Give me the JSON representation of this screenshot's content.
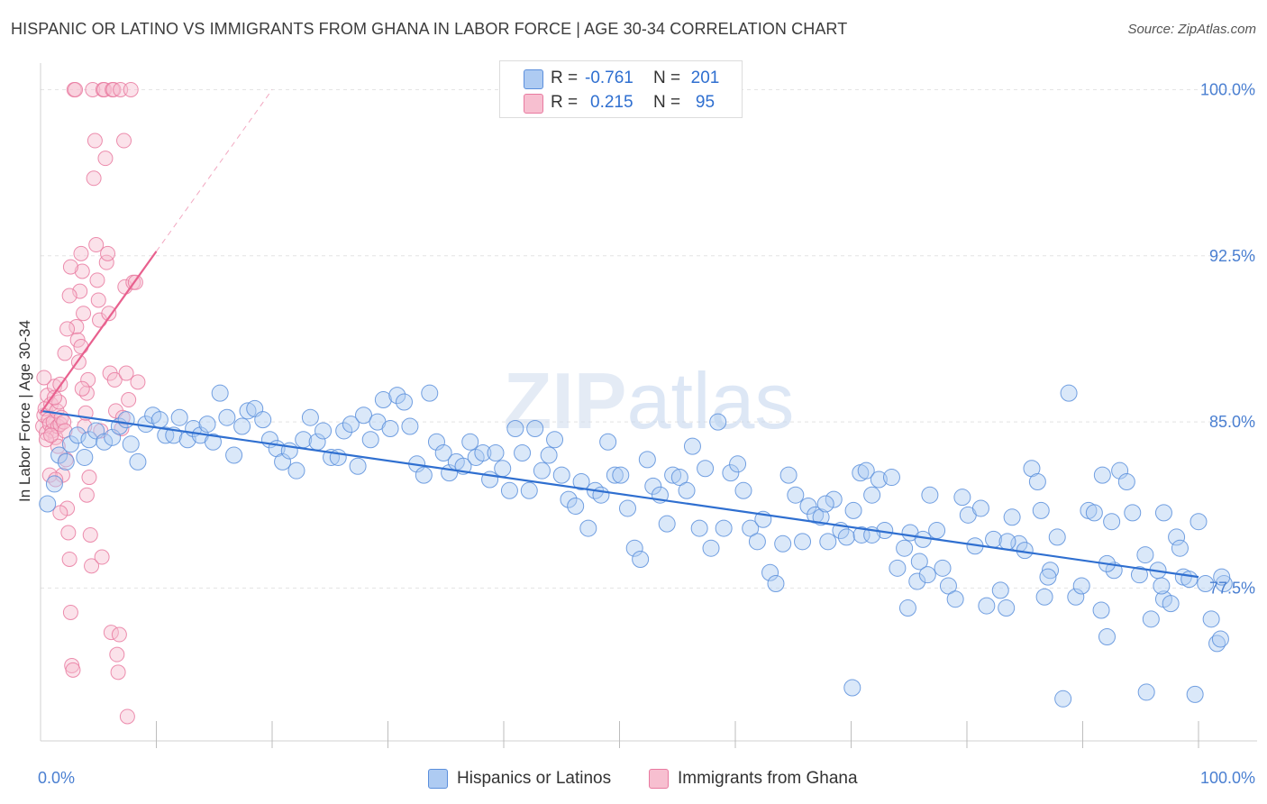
{
  "title": "HISPANIC OR LATINO VS IMMIGRANTS FROM GHANA IN LABOR FORCE | AGE 30-34 CORRELATION CHART",
  "source": "Source: ZipAtlas.com",
  "watermark": "ZIPatlas",
  "colors": {
    "blue_fill": "#aecbf2",
    "blue_stroke": "#5b8fdc",
    "blue_line": "#2f6fd0",
    "pink_fill": "#f7bfd0",
    "pink_stroke": "#e97aa0",
    "pink_line": "#e8608e",
    "tick": "#4a7fd1",
    "grid": "#e4e4e4"
  },
  "legend_top": [
    {
      "r_label": "R =",
      "r_value": "-0.761",
      "n_label": "N =",
      "n_value": "201",
      "series": "blue"
    },
    {
      "r_label": "R =",
      "r_value": "0.215",
      "n_label": "N =",
      "n_value": "95",
      "series": "pink"
    }
  ],
  "legend_bottom": [
    {
      "label": "Hispanics or Latinos",
      "series": "blue"
    },
    {
      "label": "Immigrants from Ghana",
      "series": "pink"
    }
  ],
  "chart_data": {
    "type": "scatter",
    "ylabel": "In Labor Force | Age 30-34",
    "xlabel": "",
    "x_tick_labels": [
      "0.0%",
      "100.0%"
    ],
    "y_tick_labels": [
      "100.0%",
      "92.5%",
      "85.0%",
      "77.5%"
    ],
    "y_ticks": [
      100.0,
      92.5,
      85.0,
      77.5
    ],
    "xlim": [
      0,
      100
    ],
    "ylim": [
      70.6,
      101.2
    ],
    "grid": true,
    "series": [
      {
        "name": "Hispanics or Latinos",
        "color": "#aecbf2",
        "trend": {
          "x": [
            0,
            100
          ],
          "y": [
            85.5,
            78.0
          ],
          "style": "solid"
        },
        "points": [
          [
            0.6,
            81.3
          ],
          [
            1.2,
            82.2
          ],
          [
            1.6,
            83.5
          ],
          [
            2.2,
            83.2
          ],
          [
            2.6,
            84.0
          ],
          [
            3.2,
            84.4
          ],
          [
            3.8,
            83.4
          ],
          [
            4.2,
            84.2
          ],
          [
            4.8,
            84.6
          ],
          [
            5.5,
            84.1
          ],
          [
            6.2,
            84.3
          ],
          [
            6.8,
            84.8
          ],
          [
            7.4,
            85.1
          ],
          [
            7.8,
            84.0
          ],
          [
            8.4,
            83.2
          ],
          [
            9.1,
            84.9
          ],
          [
            9.7,
            85.3
          ],
          [
            10.3,
            85.1
          ],
          [
            10.8,
            84.4
          ],
          [
            11.5,
            84.4
          ],
          [
            12.0,
            85.2
          ],
          [
            12.7,
            84.2
          ],
          [
            13.2,
            84.7
          ],
          [
            13.8,
            84.4
          ],
          [
            14.4,
            84.9
          ],
          [
            14.9,
            84.1
          ],
          [
            15.5,
            86.3
          ],
          [
            16.1,
            85.2
          ],
          [
            16.7,
            83.5
          ],
          [
            17.4,
            84.8
          ],
          [
            17.9,
            85.5
          ],
          [
            18.5,
            85.6
          ],
          [
            19.2,
            85.1
          ],
          [
            19.8,
            84.2
          ],
          [
            20.4,
            83.8
          ],
          [
            20.9,
            83.2
          ],
          [
            21.5,
            83.7
          ],
          [
            22.1,
            82.8
          ],
          [
            22.7,
            84.2
          ],
          [
            23.3,
            85.2
          ],
          [
            23.9,
            84.1
          ],
          [
            24.4,
            84.6
          ],
          [
            25.1,
            83.4
          ],
          [
            25.7,
            83.4
          ],
          [
            26.2,
            84.6
          ],
          [
            26.8,
            84.9
          ],
          [
            27.4,
            83.0
          ],
          [
            27.9,
            85.3
          ],
          [
            28.5,
            84.2
          ],
          [
            29.1,
            85.0
          ],
          [
            29.6,
            86.0
          ],
          [
            30.2,
            84.7
          ],
          [
            30.8,
            86.2
          ],
          [
            31.4,
            85.9
          ],
          [
            31.9,
            84.8
          ],
          [
            32.5,
            83.1
          ],
          [
            33.1,
            82.6
          ],
          [
            33.6,
            86.3
          ],
          [
            34.2,
            84.1
          ],
          [
            34.8,
            83.6
          ],
          [
            35.3,
            82.7
          ],
          [
            35.9,
            83.2
          ],
          [
            36.5,
            83.0
          ],
          [
            37.1,
            84.1
          ],
          [
            37.6,
            83.4
          ],
          [
            38.2,
            83.6
          ],
          [
            38.8,
            82.4
          ],
          [
            39.3,
            83.6
          ],
          [
            39.9,
            82.9
          ],
          [
            40.5,
            81.9
          ],
          [
            41.0,
            84.7
          ],
          [
            41.6,
            83.6
          ],
          [
            42.2,
            81.9
          ],
          [
            42.7,
            84.7
          ],
          [
            43.3,
            82.8
          ],
          [
            43.9,
            83.5
          ],
          [
            44.4,
            84.2
          ],
          [
            45.0,
            82.6
          ],
          [
            45.6,
            81.5
          ],
          [
            46.2,
            81.2
          ],
          [
            46.7,
            82.3
          ],
          [
            47.3,
            80.2
          ],
          [
            47.9,
            81.9
          ],
          [
            48.4,
            81.7
          ],
          [
            49.0,
            84.1
          ],
          [
            49.6,
            82.6
          ],
          [
            50.1,
            82.6
          ],
          [
            50.7,
            81.1
          ],
          [
            51.3,
            79.3
          ],
          [
            51.8,
            78.8
          ],
          [
            52.4,
            83.3
          ],
          [
            52.9,
            82.1
          ],
          [
            53.5,
            81.7
          ],
          [
            54.1,
            80.4
          ],
          [
            54.6,
            82.6
          ],
          [
            55.2,
            82.5
          ],
          [
            55.8,
            81.9
          ],
          [
            56.3,
            83.9
          ],
          [
            56.9,
            80.2
          ],
          [
            57.4,
            82.9
          ],
          [
            57.9,
            79.3
          ],
          [
            58.5,
            85.0
          ],
          [
            59.0,
            80.2
          ],
          [
            59.6,
            82.7
          ],
          [
            60.2,
            83.1
          ],
          [
            60.7,
            81.9
          ],
          [
            61.3,
            80.2
          ],
          [
            61.9,
            79.6
          ],
          [
            62.4,
            80.6
          ],
          [
            63.0,
            78.2
          ],
          [
            63.5,
            77.7
          ],
          [
            64.1,
            79.5
          ],
          [
            64.6,
            82.6
          ],
          [
            65.2,
            81.7
          ],
          [
            65.8,
            79.6
          ],
          [
            66.3,
            81.2
          ],
          [
            66.9,
            80.8
          ],
          [
            67.4,
            80.7
          ],
          [
            68.0,
            79.6
          ],
          [
            68.5,
            81.5
          ],
          [
            69.1,
            80.1
          ],
          [
            69.6,
            79.8
          ],
          [
            70.2,
            81.0
          ],
          [
            70.8,
            82.7
          ],
          [
            71.3,
            82.8
          ],
          [
            71.8,
            81.7
          ],
          [
            72.4,
            82.4
          ],
          [
            72.9,
            80.1
          ],
          [
            73.5,
            82.5
          ],
          [
            74.0,
            78.4
          ],
          [
            74.6,
            79.3
          ],
          [
            75.1,
            80.0
          ],
          [
            75.7,
            77.8
          ],
          [
            76.2,
            79.7
          ],
          [
            76.8,
            81.7
          ],
          [
            77.4,
            80.1
          ],
          [
            77.9,
            78.4
          ],
          [
            78.4,
            77.6
          ],
          [
            79.0,
            77.0
          ],
          [
            79.6,
            81.6
          ],
          [
            80.1,
            80.8
          ],
          [
            80.7,
            79.4
          ],
          [
            81.2,
            81.1
          ],
          [
            81.7,
            76.7
          ],
          [
            82.3,
            79.7
          ],
          [
            82.9,
            77.4
          ],
          [
            83.4,
            76.6
          ],
          [
            83.9,
            80.7
          ],
          [
            84.5,
            79.5
          ],
          [
            85.0,
            79.2
          ],
          [
            85.6,
            82.9
          ],
          [
            86.1,
            82.3
          ],
          [
            86.7,
            77.1
          ],
          [
            87.2,
            78.3
          ],
          [
            87.8,
            79.8
          ],
          [
            88.3,
            72.5
          ],
          [
            88.8,
            86.3
          ],
          [
            89.4,
            77.1
          ],
          [
            89.9,
            77.6
          ],
          [
            90.5,
            81.0
          ],
          [
            91.0,
            80.9
          ],
          [
            91.6,
            76.5
          ],
          [
            92.1,
            75.3
          ],
          [
            92.7,
            78.3
          ],
          [
            93.2,
            82.8
          ],
          [
            93.8,
            82.3
          ],
          [
            94.3,
            80.9
          ],
          [
            94.9,
            78.1
          ],
          [
            95.4,
            79.0
          ],
          [
            95.9,
            76.1
          ],
          [
            96.5,
            78.3
          ],
          [
            97.0,
            77.0
          ],
          [
            97.6,
            76.8
          ],
          [
            98.1,
            79.8
          ],
          [
            98.7,
            78.0
          ],
          [
            99.2,
            77.9
          ],
          [
            99.7,
            72.7
          ],
          [
            100.0,
            80.5
          ],
          [
            100.6,
            77.7
          ],
          [
            101.1,
            76.1
          ],
          [
            101.6,
            75.0
          ],
          [
            102.2,
            77.7
          ],
          [
            101.9,
            75.2
          ],
          [
            75.9,
            78.7
          ],
          [
            74.9,
            76.6
          ],
          [
            70.1,
            73.0
          ],
          [
            70.9,
            79.9
          ],
          [
            76.6,
            78.1
          ],
          [
            92.1,
            78.6
          ],
          [
            71.8,
            79.9
          ],
          [
            67.8,
            81.3
          ],
          [
            91.7,
            82.6
          ],
          [
            97.0,
            80.9
          ],
          [
            96.8,
            77.6
          ],
          [
            102.0,
            78.0
          ],
          [
            98.4,
            79.3
          ],
          [
            92.5,
            80.5
          ],
          [
            86.4,
            81.0
          ],
          [
            83.5,
            79.6
          ],
          [
            87.0,
            78.0
          ],
          [
            95.5,
            72.8
          ]
        ]
      },
      {
        "name": "Immigrants from Ghana",
        "color": "#f7bfd0",
        "trend": {
          "x": [
            0,
            10
          ],
          "y": [
            85.4,
            92.7
          ],
          "style": "solid",
          "extend_to": [
            20,
            100.0
          ]
        },
        "points": [
          [
            0.2,
            84.8
          ],
          [
            0.3,
            85.3
          ],
          [
            0.4,
            85.6
          ],
          [
            0.5,
            84.5
          ],
          [
            0.6,
            86.2
          ],
          [
            0.7,
            85.1
          ],
          [
            0.8,
            84.9
          ],
          [
            0.9,
            85.8
          ],
          [
            1.0,
            84.6
          ],
          [
            1.1,
            85.0
          ],
          [
            1.2,
            86.6
          ],
          [
            1.3,
            84.3
          ],
          [
            1.4,
            85.5
          ],
          [
            1.5,
            84.8
          ],
          [
            1.6,
            85.9
          ],
          [
            1.7,
            84.9
          ],
          [
            1.8,
            85.2
          ],
          [
            1.9,
            82.6
          ],
          [
            2.0,
            85.0
          ],
          [
            2.1,
            84.6
          ],
          [
            2.2,
            83.3
          ],
          [
            2.3,
            81.1
          ],
          [
            2.4,
            80.0
          ],
          [
            2.5,
            78.8
          ],
          [
            2.6,
            76.4
          ],
          [
            2.7,
            74.0
          ],
          [
            2.8,
            73.8
          ],
          [
            2.9,
            100.0
          ],
          [
            3.0,
            100.0
          ],
          [
            3.1,
            89.3
          ],
          [
            3.2,
            88.7
          ],
          [
            3.3,
            87.7
          ],
          [
            3.4,
            90.9
          ],
          [
            3.5,
            92.6
          ],
          [
            3.6,
            91.8
          ],
          [
            3.7,
            89.9
          ],
          [
            3.8,
            84.8
          ],
          [
            3.9,
            85.4
          ],
          [
            4.0,
            86.3
          ],
          [
            4.1,
            86.9
          ],
          [
            4.2,
            82.5
          ],
          [
            4.3,
            79.9
          ],
          [
            4.4,
            78.5
          ],
          [
            4.5,
            100.0
          ],
          [
            4.6,
            96.0
          ],
          [
            4.7,
            97.7
          ],
          [
            4.8,
            93.0
          ],
          [
            4.9,
            91.4
          ],
          [
            5.0,
            90.5
          ],
          [
            5.1,
            89.6
          ],
          [
            5.2,
            84.6
          ],
          [
            5.3,
            78.9
          ],
          [
            5.4,
            100.0
          ],
          [
            5.5,
            100.0
          ],
          [
            5.6,
            96.9
          ],
          [
            5.7,
            92.2
          ],
          [
            5.8,
            92.6
          ],
          [
            5.9,
            89.9
          ],
          [
            6.0,
            87.2
          ],
          [
            6.1,
            75.5
          ],
          [
            6.2,
            100.0
          ],
          [
            6.3,
            100.0
          ],
          [
            6.4,
            86.9
          ],
          [
            6.5,
            85.5
          ],
          [
            6.6,
            74.5
          ],
          [
            6.7,
            73.7
          ],
          [
            6.8,
            75.4
          ],
          [
            6.9,
            100.0
          ],
          [
            7.0,
            84.7
          ],
          [
            7.1,
            85.2
          ],
          [
            7.2,
            97.7
          ],
          [
            7.3,
            91.1
          ],
          [
            7.4,
            87.2
          ],
          [
            7.5,
            71.7
          ],
          [
            7.6,
            86.0
          ],
          [
            7.8,
            100.0
          ],
          [
            8.0,
            91.3
          ],
          [
            8.2,
            91.3
          ],
          [
            8.4,
            86.8
          ],
          [
            0.8,
            82.6
          ],
          [
            1.3,
            82.4
          ],
          [
            1.5,
            83.9
          ],
          [
            1.7,
            80.9
          ],
          [
            2.1,
            88.1
          ],
          [
            2.3,
            89.2
          ],
          [
            2.5,
            90.7
          ],
          [
            2.6,
            92.0
          ],
          [
            3.5,
            88.4
          ],
          [
            3.6,
            86.5
          ],
          [
            4.0,
            81.7
          ],
          [
            0.5,
            84.2
          ],
          [
            0.9,
            84.4
          ],
          [
            1.2,
            86.1
          ],
          [
            1.7,
            86.7
          ],
          [
            0.3,
            87.0
          ]
        ]
      }
    ]
  }
}
